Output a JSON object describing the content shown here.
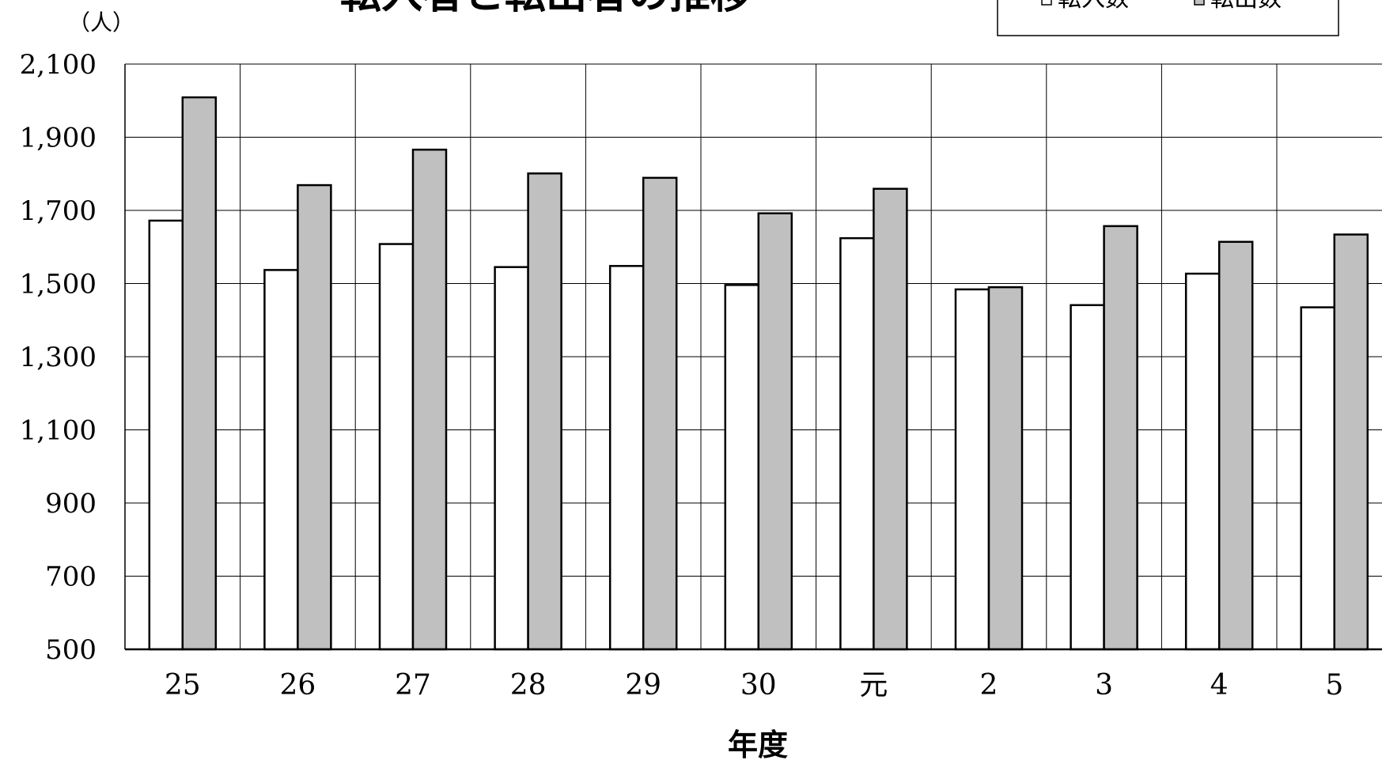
{
  "chart_data": {
    "type": "bar",
    "title": "転入者と転出者の推移",
    "xlabel": "年度",
    "ylabel": "（人）",
    "categories": [
      "25",
      "26",
      "27",
      "28",
      "29",
      "30",
      "元",
      "2",
      "3",
      "4",
      "5"
    ],
    "ylim": [
      500,
      2100
    ],
    "yticks": [
      "2,100",
      "1,900",
      "1,700",
      "1,500",
      "1,300",
      "1,100",
      "900",
      "700",
      "500"
    ],
    "grid": true,
    "legend_position": "top-right",
    "series": [
      {
        "name": "転入数",
        "values": [
          1672,
          1537,
          1608,
          1545,
          1548,
          1496,
          1624,
          1484,
          1441,
          1527,
          1435
        ],
        "color": "#ffffff"
      },
      {
        "name": "転出数",
        "values": [
          2009,
          1769,
          1866,
          1801,
          1789,
          1692,
          1759,
          1490,
          1657,
          1614,
          1634
        ],
        "color": "#c0c0c0"
      }
    ]
  }
}
